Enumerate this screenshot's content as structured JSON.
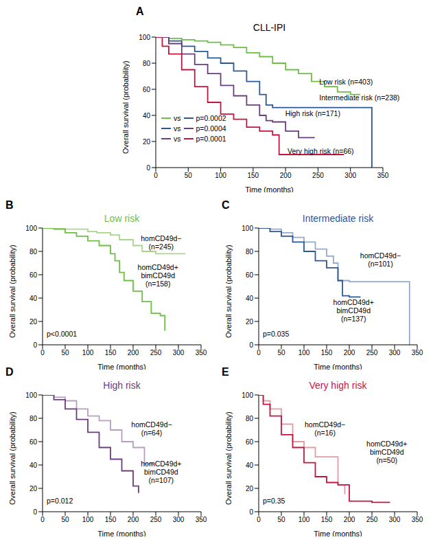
{
  "chart_data": [
    {
      "panel": "A",
      "type": "line",
      "line_style": "step",
      "title": "CLL-IPI",
      "x_label": "Time (months)",
      "y_label": "Overall survival (probability)",
      "xlim": [
        0,
        350
      ],
      "xticks": [
        0,
        50,
        100,
        150,
        200,
        250,
        300,
        350
      ],
      "ylim": [
        0,
        100
      ],
      "yticks": [
        0,
        20,
        40,
        60,
        80,
        100
      ],
      "series": [
        {
          "label": [
            "Low risk (n=403)"
          ],
          "color": "#6cbf43",
          "x": [
            0,
            20,
            40,
            60,
            80,
            100,
            120,
            140,
            160,
            180,
            200,
            220,
            240,
            260,
            280,
            300,
            315
          ],
          "values": [
            100,
            99,
            98,
            97,
            96,
            94,
            92,
            88,
            85,
            80,
            75,
            72,
            66,
            62,
            58,
            56,
            56
          ]
        },
        {
          "label": [
            "Intermediate risk (n=238)"
          ],
          "color": "#2b5797",
          "x": [
            0,
            20,
            40,
            60,
            80,
            100,
            120,
            140,
            160,
            170,
            180,
            200,
            250,
            300,
            332,
            333
          ],
          "values": [
            100,
            97,
            93,
            89,
            84,
            80,
            74,
            66,
            56,
            48,
            46,
            46,
            46,
            46,
            46,
            0
          ]
        },
        {
          "label": [
            "High risk (n=171)"
          ],
          "color": "#6a3d7d",
          "x": [
            0,
            20,
            40,
            60,
            80,
            100,
            120,
            140,
            160,
            170,
            180,
            200,
            220,
            245
          ],
          "values": [
            100,
            95,
            87,
            79,
            72,
            63,
            55,
            48,
            40,
            36,
            35,
            28,
            23,
            23
          ]
        },
        {
          "label": [
            "Very high risk (n=66)"
          ],
          "color": "#c4153f",
          "x": [
            0,
            10,
            20,
            40,
            60,
            80,
            100,
            120,
            140,
            160,
            180,
            190,
            250,
            290
          ],
          "values": [
            100,
            93,
            87,
            75,
            62,
            50,
            41,
            37,
            31,
            28,
            25,
            10,
            10,
            10
          ]
        }
      ],
      "comparisons": [
        {
          "colors": [
            "#6cbf43",
            "#2b5797"
          ],
          "text": "vs",
          "p": "p=0.0002"
        },
        {
          "colors": [
            "#2b5797",
            "#6a3d7d"
          ],
          "text": "vs",
          "p": "p=0.0004"
        },
        {
          "colors": [
            "#6a3d7d",
            "#c4153f"
          ],
          "text": "vs",
          "p": "p=0.0001"
        }
      ]
    },
    {
      "panel": "B",
      "type": "line",
      "line_style": "step",
      "title": "Low risk",
      "color": "#6cbf43",
      "x_label": "Time (months)",
      "y_label": "Overall survival (probability)",
      "xlim": [
        0,
        350
      ],
      "xticks": [
        0,
        50,
        100,
        150,
        200,
        250,
        300,
        350
      ],
      "ylim": [
        0,
        100
      ],
      "yticks": [
        0,
        20,
        40,
        60,
        80,
        100
      ],
      "p_label": "p<0.0001",
      "series": [
        {
          "label": [
            "homCD49d−",
            "(n=245)"
          ],
          "color": "#a9d48c",
          "x": [
            0,
            50,
            100,
            120,
            150,
            170,
            200,
            220,
            250,
            280,
            315
          ],
          "values": [
            100,
            99,
            97,
            96,
            94,
            90,
            85,
            80,
            78,
            78,
            78
          ]
        },
        {
          "label": [
            "homCD49d+",
            "bimCD49d",
            "(n=158)"
          ],
          "color": "#6cbf43",
          "x": [
            0,
            25,
            50,
            75,
            100,
            125,
            150,
            160,
            170,
            180,
            200,
            220,
            240,
            260,
            270
          ],
          "values": [
            100,
            99,
            96,
            93,
            89,
            85,
            78,
            72,
            62,
            55,
            46,
            37,
            27,
            25,
            12
          ]
        }
      ]
    },
    {
      "panel": "C",
      "type": "line",
      "line_style": "step",
      "title": "Intermediate risk",
      "color": "#2b5797",
      "x_label": "Time (months)",
      "y_label": "Overall survival (probability)",
      "xlim": [
        0,
        350
      ],
      "xticks": [
        0,
        50,
        100,
        150,
        200,
        250,
        300,
        350
      ],
      "ylim": [
        0,
        100
      ],
      "yticks": [
        0,
        20,
        40,
        60,
        80,
        100
      ],
      "p_label": "p=0.035",
      "series": [
        {
          "label": [
            "homCD49d−",
            "(n=101)"
          ],
          "color": "#94a9cc",
          "x": [
            0,
            25,
            50,
            75,
            100,
            125,
            150,
            165,
            175,
            200,
            250,
            300,
            332,
            333
          ],
          "values": [
            100,
            99,
            96,
            92,
            88,
            82,
            76,
            70,
            55,
            54,
            54,
            54,
            54,
            0
          ]
        },
        {
          "label": [
            "homCD49d+",
            "bimCD49d",
            "(n=137)"
          ],
          "color": "#2b5797",
          "x": [
            0,
            25,
            50,
            75,
            100,
            125,
            150,
            175,
            185,
            200,
            225
          ],
          "values": [
            100,
            97,
            93,
            88,
            80,
            72,
            66,
            55,
            42,
            41,
            41
          ]
        }
      ]
    },
    {
      "panel": "D",
      "type": "line",
      "line_style": "step",
      "title": "High risk",
      "color": "#6a3d7d",
      "x_label": "Time (months)",
      "y_label": "Overall survival (probability)",
      "xlim": [
        0,
        350
      ],
      "xticks": [
        0,
        50,
        100,
        150,
        200,
        250,
        300,
        350
      ],
      "ylim": [
        0,
        100
      ],
      "yticks": [
        0,
        20,
        40,
        60,
        80,
        100
      ],
      "p_label": "p=0.012",
      "series": [
        {
          "label": [
            "homCD49d−",
            "(n=64)"
          ],
          "color": "#b59ec2",
          "x": [
            0,
            25,
            50,
            75,
            100,
            125,
            150,
            175,
            200,
            225,
            245
          ],
          "values": [
            100,
            98,
            95,
            88,
            82,
            78,
            70,
            60,
            55,
            41,
            40
          ]
        },
        {
          "label": [
            "homCD49d+",
            "bimCD49d",
            "(n=107)"
          ],
          "color": "#6a3d7d",
          "x": [
            0,
            25,
            50,
            75,
            100,
            125,
            150,
            175,
            200,
            212
          ],
          "values": [
            100,
            96,
            88,
            79,
            68,
            55,
            45,
            35,
            22,
            16
          ]
        }
      ]
    },
    {
      "panel": "E",
      "type": "line",
      "line_style": "step",
      "title": "Very high risk",
      "color": "#c4153f",
      "x_label": "Time (months)",
      "y_label": "Overall survival (probability)",
      "xlim": [
        0,
        350
      ],
      "xticks": [
        0,
        50,
        100,
        150,
        200,
        250,
        300,
        350
      ],
      "ylim": [
        0,
        100
      ],
      "yticks": [
        0,
        20,
        40,
        60,
        80,
        100
      ],
      "p_label": "p=0.35",
      "series": [
        {
          "label": [
            "homCD49d−",
            "(n=16)"
          ],
          "color": "#e59ba3",
          "x": [
            0,
            10,
            25,
            50,
            75,
            100,
            125,
            150,
            175,
            190
          ],
          "values": [
            100,
            95,
            88,
            75,
            60,
            55,
            47,
            47,
            23,
            15
          ]
        },
        {
          "label": [
            "homCD49d+",
            "bimCD49d",
            "(n=50)"
          ],
          "color": "#c4153f",
          "x": [
            0,
            10,
            25,
            50,
            75,
            100,
            125,
            150,
            175,
            200,
            250,
            290
          ],
          "values": [
            100,
            92,
            82,
            66,
            55,
            42,
            30,
            25,
            23,
            9,
            8,
            8
          ]
        }
      ]
    }
  ]
}
